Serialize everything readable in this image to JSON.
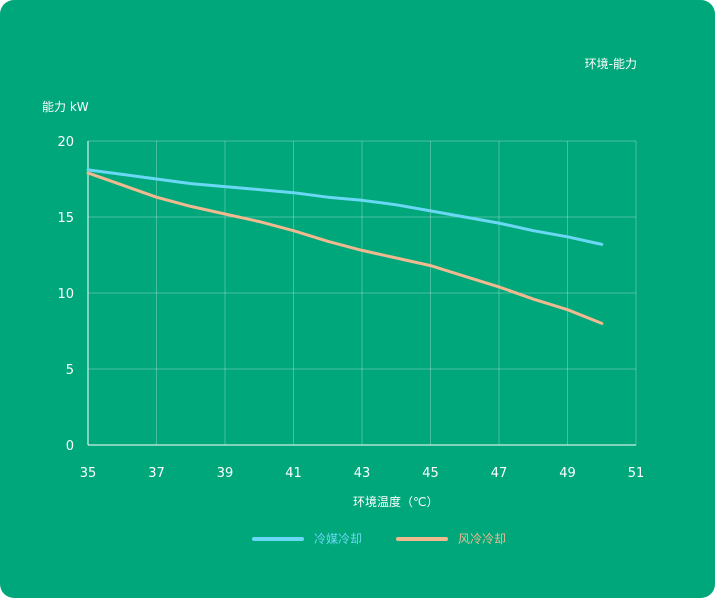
{
  "chart_data": {
    "type": "line",
    "title": "环境-能力",
    "xlabel": "环境温度（℃）",
    "ylabel": "能力 kW",
    "xlim": [
      35,
      51
    ],
    "ylim": [
      0,
      20
    ],
    "x_ticks": [
      35,
      37,
      39,
      41,
      43,
      45,
      47,
      49,
      51
    ],
    "y_ticks": [
      0,
      5,
      10,
      15,
      20
    ],
    "grid": true,
    "legend_position": "bottom-center",
    "series": [
      {
        "name": "冷媒冷却",
        "color": "#6ad8f4",
        "x": [
          35,
          36,
          37,
          38,
          39,
          40,
          41,
          42,
          43,
          44,
          45,
          46,
          47,
          48,
          49,
          50
        ],
        "y": [
          18.1,
          17.8,
          17.5,
          17.2,
          17.0,
          16.8,
          16.6,
          16.3,
          16.1,
          15.8,
          15.4,
          15.0,
          14.6,
          14.1,
          13.7,
          13.2
        ]
      },
      {
        "name": "风冷冷却",
        "color": "#f0b98f",
        "x": [
          35,
          36,
          37,
          38,
          39,
          40,
          41,
          42,
          43,
          44,
          45,
          46,
          47,
          48,
          49,
          50
        ],
        "y": [
          17.9,
          17.1,
          16.3,
          15.7,
          15.2,
          14.7,
          14.1,
          13.4,
          12.8,
          12.3,
          11.8,
          11.1,
          10.4,
          9.6,
          8.9,
          8.0
        ]
      }
    ]
  }
}
